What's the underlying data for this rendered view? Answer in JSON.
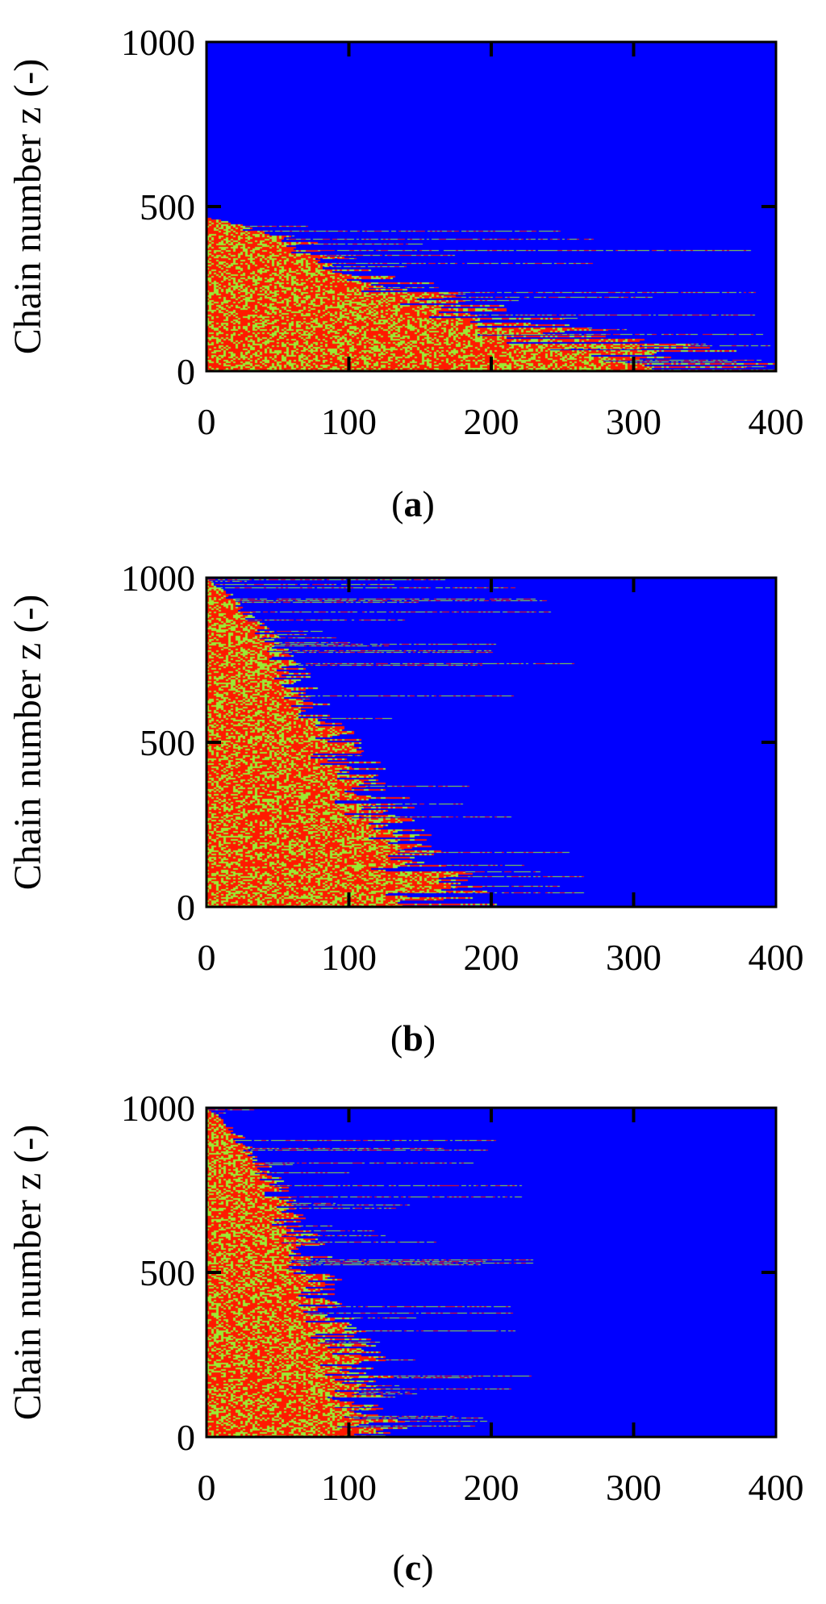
{
  "colors": {
    "background_state": "#0000ff",
    "state_red": "#ff1a00",
    "state_green": "#9bea33",
    "axis": "#000000"
  },
  "chart_data": [
    {
      "type": "heatmap",
      "caption_letter": "a",
      "caption_open": "(",
      "caption_close": ")",
      "xlabel": "",
      "ylabel": "Chain number z (-)",
      "xlim": [
        0,
        400
      ],
      "ylim": [
        0,
        1000
      ],
      "xticks": [
        "0",
        "100",
        "200",
        "300",
        "400"
      ],
      "yticks": [
        "0",
        "500",
        "1000"
      ],
      "grid": false,
      "profile": {
        "description_of_cells": "colored cells for chains below front, blue background elsewhere",
        "front_top_z": 470,
        "front_x_at_z": [
          [
            0,
            380
          ],
          [
            100,
            250
          ],
          [
            200,
            170
          ],
          [
            300,
            110
          ],
          [
            400,
            60
          ],
          [
            470,
            0
          ]
        ],
        "streak_reach_max_x": 400
      }
    },
    {
      "type": "heatmap",
      "caption_letter": "b",
      "caption_open": "(",
      "caption_close": ")",
      "xlabel": "",
      "ylabel": "Chain number z (-)",
      "xlim": [
        0,
        400
      ],
      "ylim": [
        0,
        1000
      ],
      "xticks": [
        "0",
        "100",
        "200",
        "300",
        "400"
      ],
      "yticks": [
        "0",
        "500",
        "1000"
      ],
      "grid": false,
      "profile": {
        "front_top_z": 1000,
        "front_x_at_z": [
          [
            0,
            170
          ],
          [
            200,
            130
          ],
          [
            400,
            105
          ],
          [
            600,
            75
          ],
          [
            800,
            45
          ],
          [
            950,
            15
          ],
          [
            1000,
            0
          ]
        ],
        "streak_reach_max_x": 265
      }
    },
    {
      "type": "heatmap",
      "caption_letter": "c",
      "caption_open": "(",
      "caption_close": ")",
      "xlabel": "",
      "ylabel": "Chain number z (-)",
      "xlim": [
        0,
        400
      ],
      "ylim": [
        0,
        1000
      ],
      "xticks": [
        "0",
        "100",
        "200",
        "300",
        "400"
      ],
      "yticks": [
        "0",
        "500",
        "1000"
      ],
      "grid": false,
      "profile": {
        "front_top_z": 1000,
        "front_x_at_z": [
          [
            0,
            120
          ],
          [
            200,
            105
          ],
          [
            400,
            85
          ],
          [
            600,
            65
          ],
          [
            800,
            40
          ],
          [
            950,
            15
          ],
          [
            1000,
            0
          ]
        ],
        "streak_reach_max_x": 230
      }
    }
  ]
}
